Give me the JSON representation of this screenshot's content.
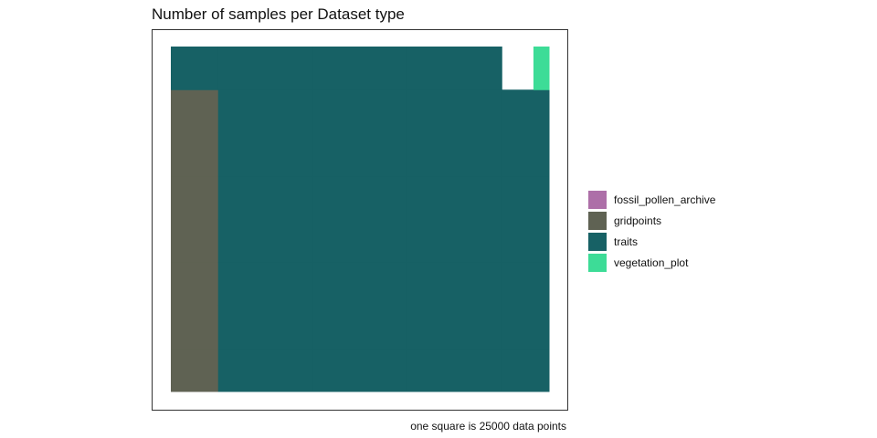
{
  "chart_data": {
    "type": "waffle",
    "title": "Number of samples per Dataset type",
    "caption": "one square is 25000 data points",
    "square_value": 25000,
    "grid": {
      "rows": 8,
      "cols": 8
    },
    "series": [
      {
        "name": "fossil_pollen_archive",
        "squares": 0.33,
        "color": "#ad6fa8"
      },
      {
        "name": "gridpoints",
        "squares": 7.66,
        "color": "#5f6253"
      },
      {
        "name": "traits",
        "squares": 55,
        "color": "#176165"
      },
      {
        "name": "vegetation_plot",
        "squares": 0.33,
        "color": "#3ddc97"
      }
    ]
  }
}
